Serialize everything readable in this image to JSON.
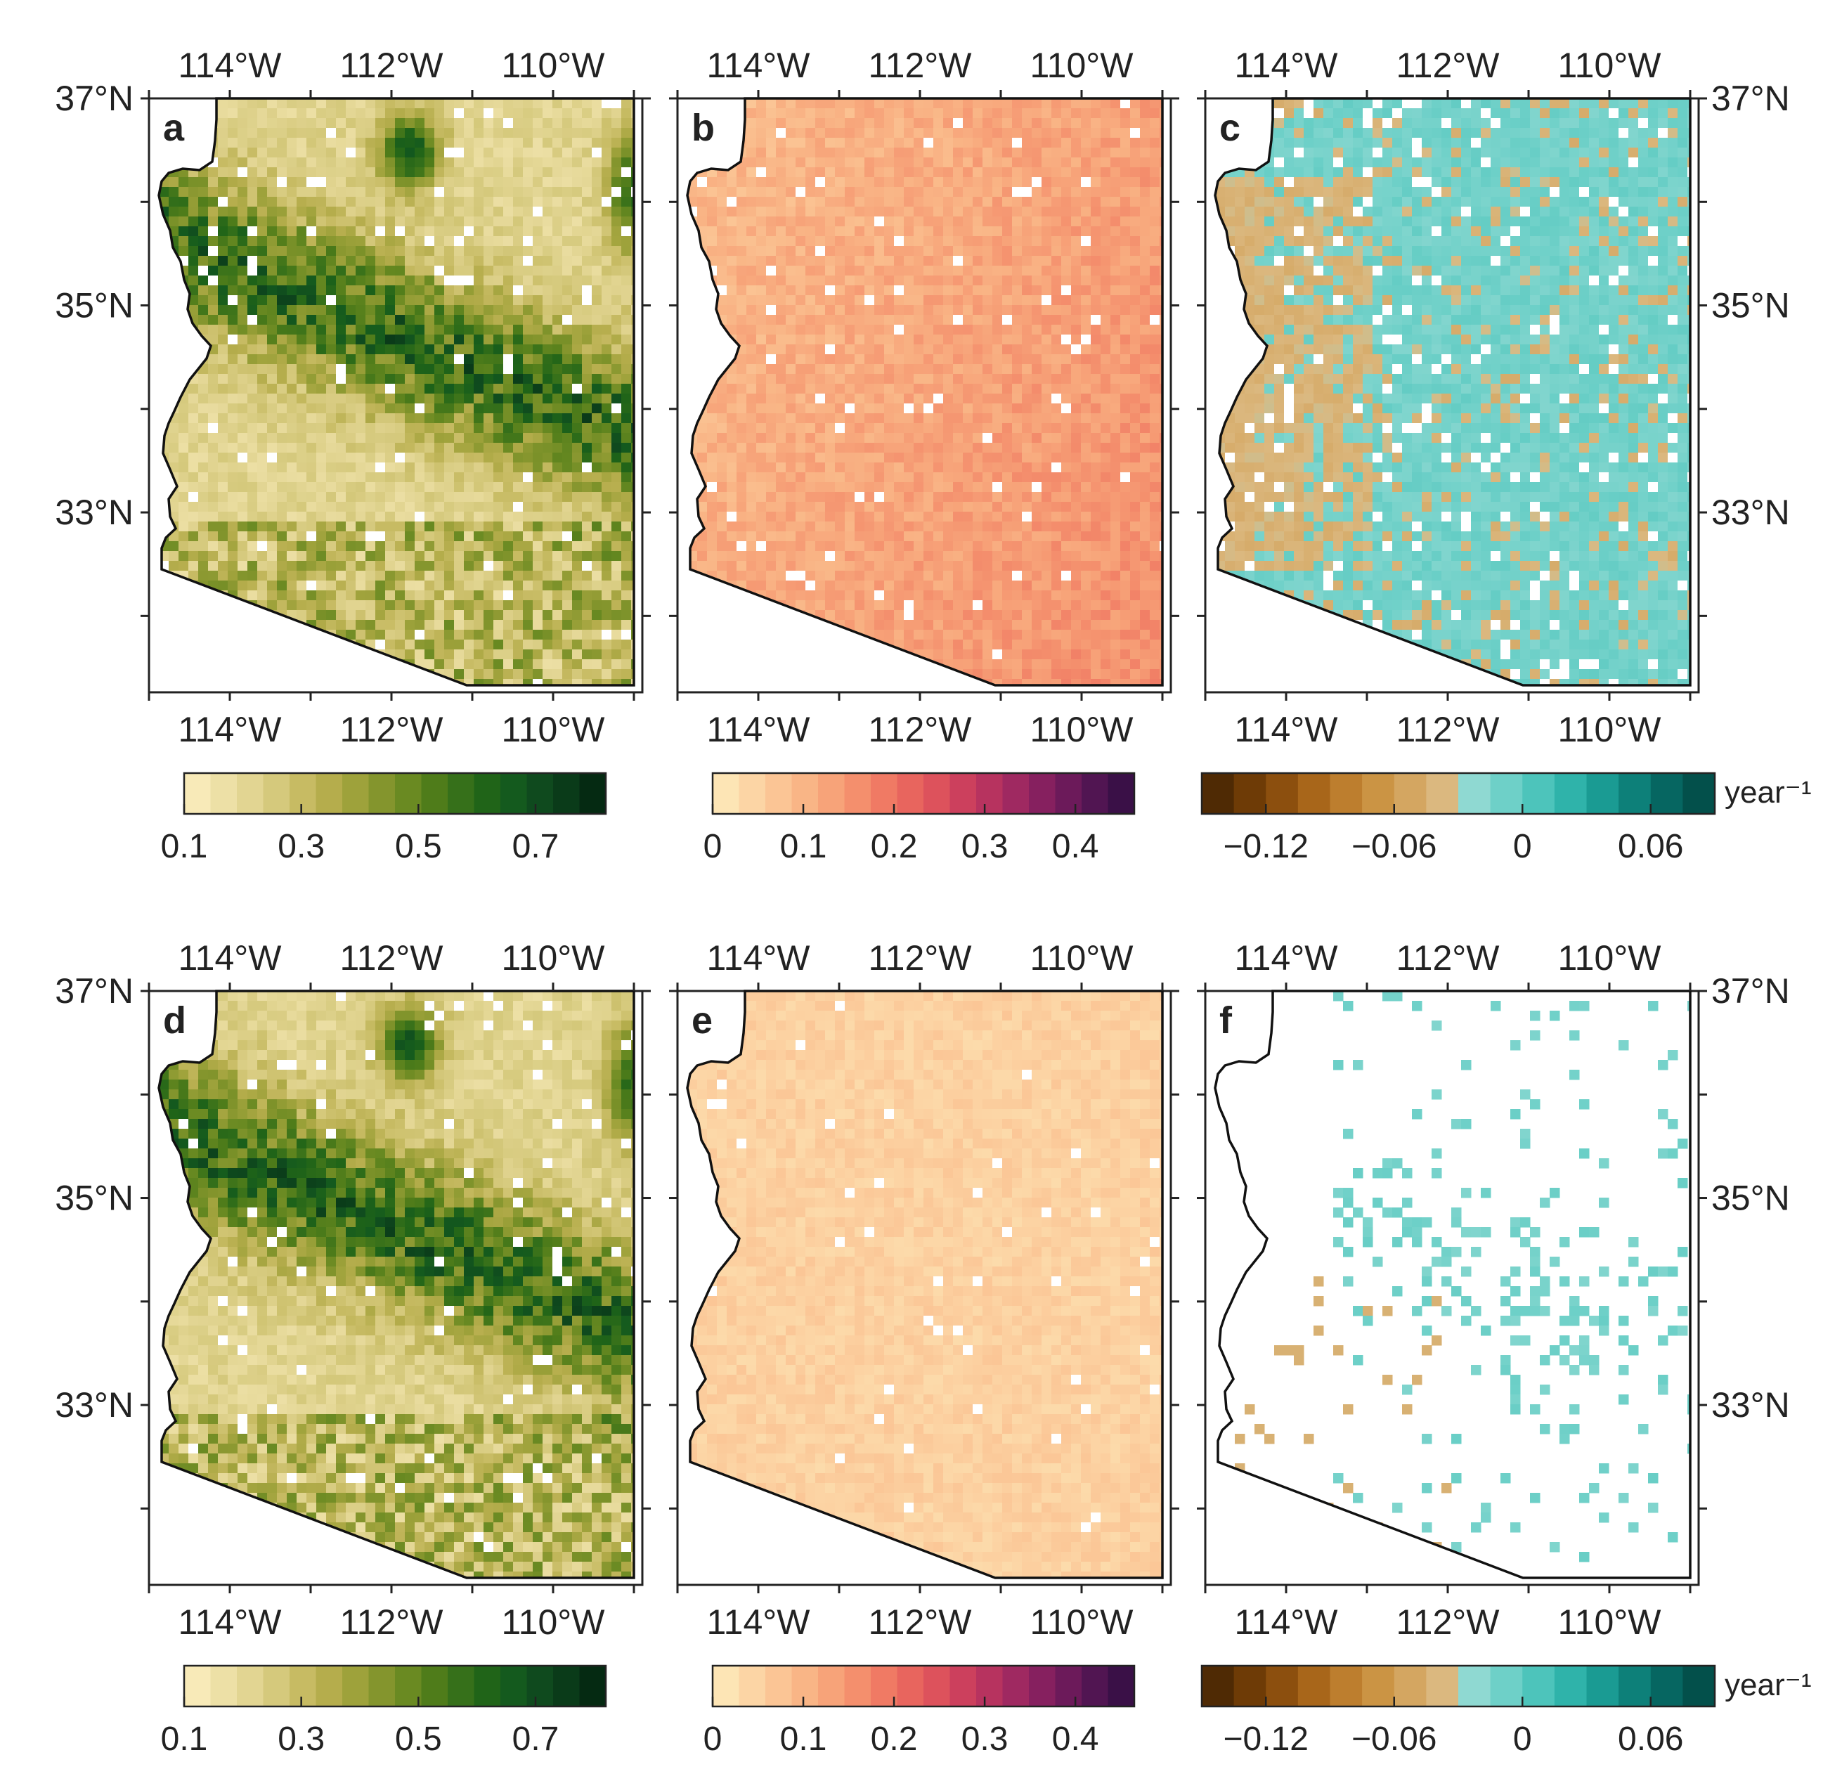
{
  "figure": {
    "lon_ticks": [
      "114°W",
      "112°W",
      "110°W"
    ],
    "lat_ticks": [
      "37°N",
      "35°N",
      "33°N"
    ],
    "panels": [
      {
        "letter": "a",
        "colorbar": "greens",
        "pattern": "veg"
      },
      {
        "letter": "b",
        "colorbar": "reds",
        "pattern": "std_high"
      },
      {
        "letter": "c",
        "colorbar": "diverging",
        "pattern": "trend_dense",
        "right_lat_labels": true
      },
      {
        "letter": "d",
        "colorbar": "greens",
        "pattern": "veg"
      },
      {
        "letter": "e",
        "colorbar": "reds",
        "pattern": "std_low"
      },
      {
        "letter": "f",
        "colorbar": "diverging",
        "pattern": "trend_sparse",
        "right_lat_labels": true
      }
    ],
    "colorbars": {
      "greens": {
        "tick_labels": [
          "0.1",
          "0.3",
          "0.5",
          "0.7"
        ],
        "tick_values": [
          0.1,
          0.3,
          0.5,
          0.7
        ],
        "range": [
          0.1,
          0.82
        ],
        "colors": [
          "#f8eab8",
          "#ede0a6",
          "#e2d592",
          "#d5c97c",
          "#c7bb63",
          "#b5ad4c",
          "#9ea23b",
          "#84952d",
          "#6a8a22",
          "#4f7c1a",
          "#36701a",
          "#206418",
          "#145a1e",
          "#0f4a1e",
          "#0a3b19",
          "#052a12"
        ]
      },
      "reds": {
        "tick_labels": [
          "0",
          "0.1",
          "0.2",
          "0.3",
          "0.4"
        ],
        "tick_values": [
          0,
          0.1,
          0.2,
          0.3,
          0.4
        ],
        "range": [
          0,
          0.465
        ],
        "colors": [
          "#fde5b5",
          "#fcd5a5",
          "#fbc595",
          "#f9b586",
          "#f7a379",
          "#f48f6d",
          "#f07a64",
          "#e8655e",
          "#dd525c",
          "#cc405d",
          "#b7335f",
          "#9f2961",
          "#86205f",
          "#6c1a5a",
          "#511552",
          "#3a1047"
        ]
      },
      "diverging": {
        "tick_labels": [
          "−0.12",
          "−0.06",
          "0",
          "0.06"
        ],
        "tick_values": [
          -0.12,
          -0.06,
          0,
          0.06
        ],
        "range": [
          -0.15,
          0.09
        ],
        "colors": [
          "#4f2a04",
          "#6e3b06",
          "#8c4f0e",
          "#a8661a",
          "#bd7e2e",
          "#cb9444",
          "#d4a661",
          "#dbb87f",
          "#8fd9d2",
          "#6ed0c8",
          "#4dc4bb",
          "#2fb3aa",
          "#1a9b93",
          "#0d8079",
          "#066661",
          "#03504b"
        ],
        "unit_label": "year⁻¹"
      }
    }
  }
}
